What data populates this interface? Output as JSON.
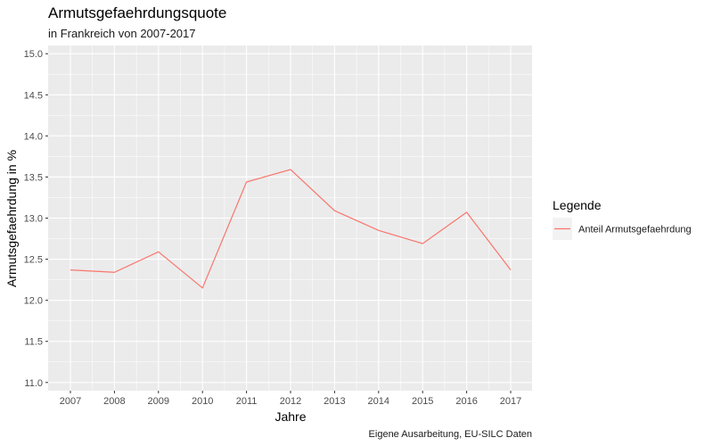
{
  "chart_data": {
    "type": "line",
    "title": "Armutsgefaehrdungsquote",
    "subtitle": "in Frankreich von 2007-2017",
    "xlabel": "Jahre",
    "ylabel": "Armutsgefaehrdung in %",
    "caption": "Eigene Ausarbeitung, EU-SILC Daten",
    "x": [
      "2007",
      "2008",
      "2009",
      "2010",
      "2011",
      "2012",
      "2013",
      "2014",
      "2015",
      "2016",
      "2017"
    ],
    "series": [
      {
        "name": "Anteil Armutsgefaehrdung",
        "color": "#F8766D",
        "values": [
          12.37,
          12.34,
          12.59,
          12.15,
          13.44,
          13.59,
          13.09,
          12.85,
          12.69,
          13.07,
          12.37
        ]
      }
    ],
    "yticks": [
      "11.0",
      "11.5",
      "12.0",
      "12.5",
      "13.0",
      "13.5",
      "14.0",
      "14.5",
      "15.0"
    ],
    "ylim": [
      10.9,
      15.1
    ],
    "legend": {
      "title": "Legende",
      "position": "right"
    },
    "grid": true,
    "panel_color": "#EBEBEB"
  }
}
